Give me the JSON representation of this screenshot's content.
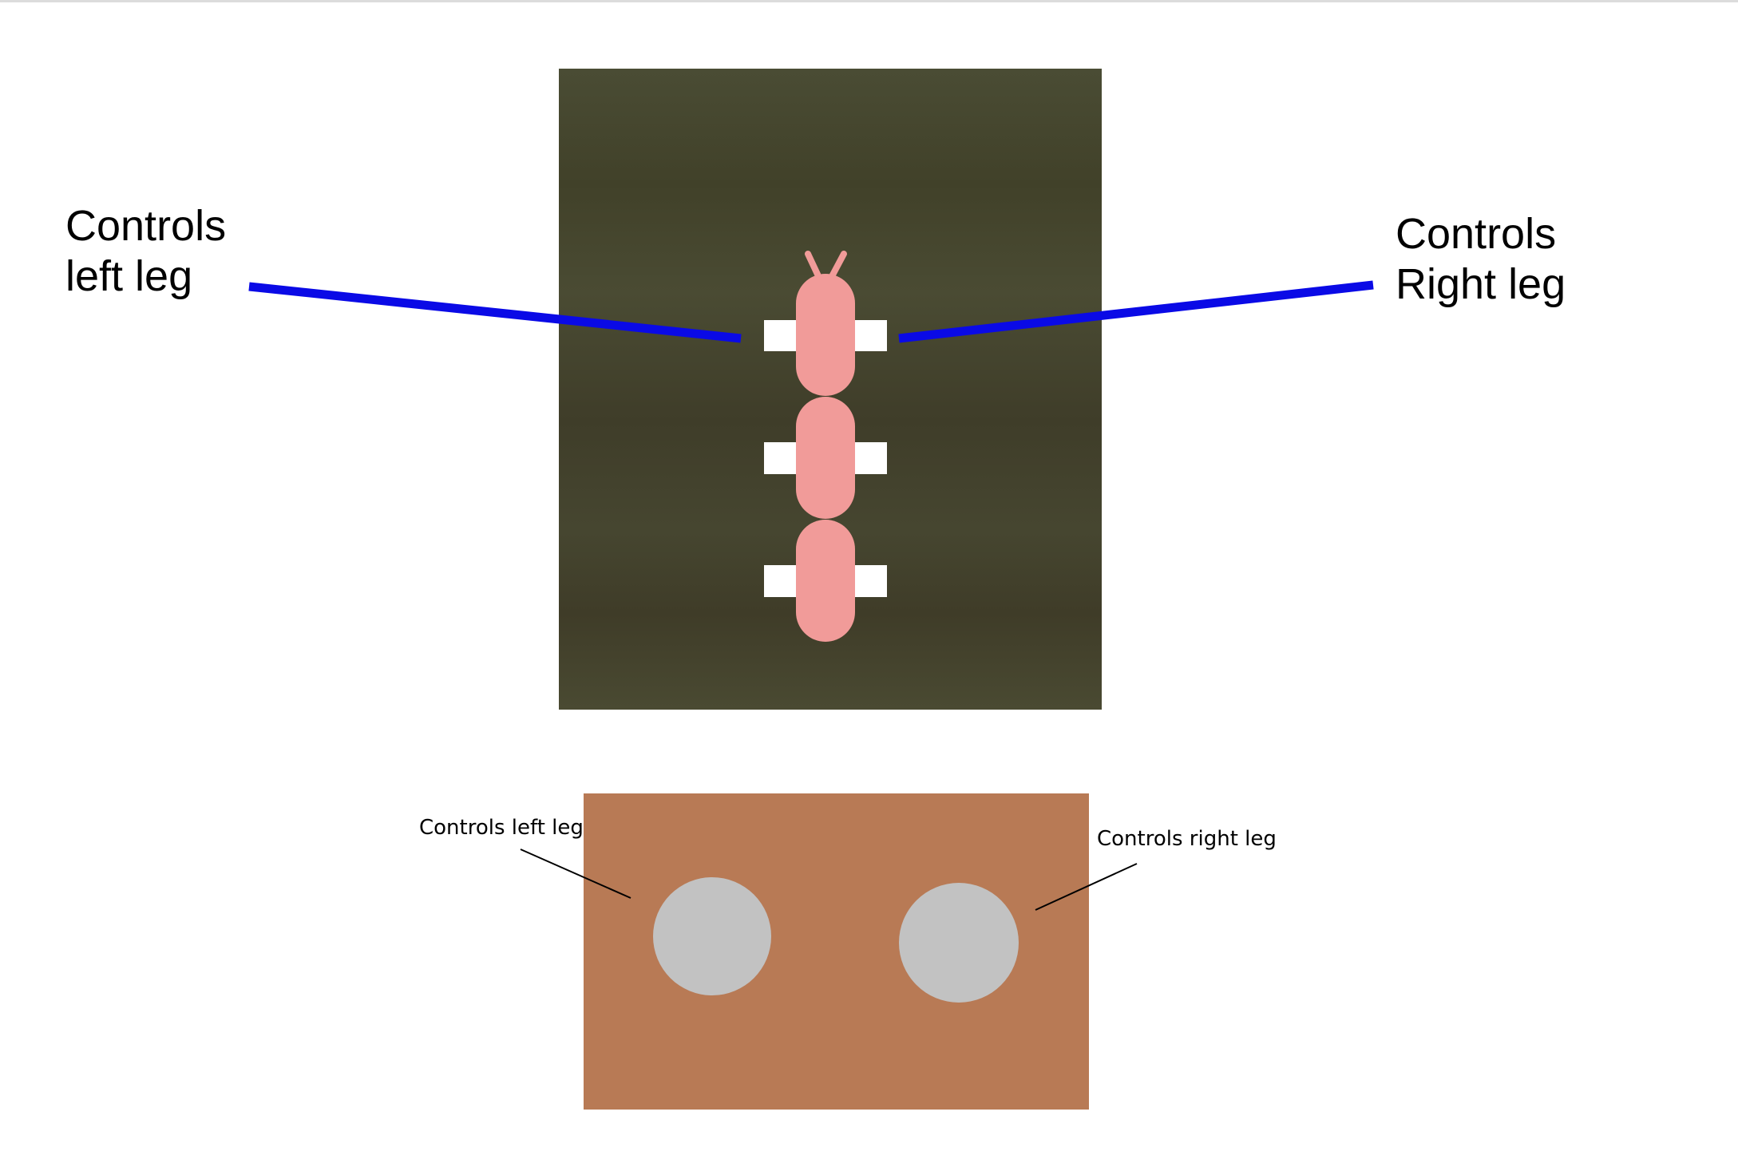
{
  "top_figure": {
    "left_label": "Controls\nleft leg",
    "right_label": "Controls\nRight leg",
    "pointer_color": "#0a0ae6",
    "background_color": "#47472f",
    "body_color": "#f19b99",
    "leg_color": "#ffffff",
    "segment_count": 3
  },
  "bottom_figure": {
    "left_label": "Controls left leg",
    "right_label": "Controls right leg",
    "panel_color": "#b87a55",
    "button_color": "#c2c2c2",
    "pointer_color": "#000000"
  }
}
